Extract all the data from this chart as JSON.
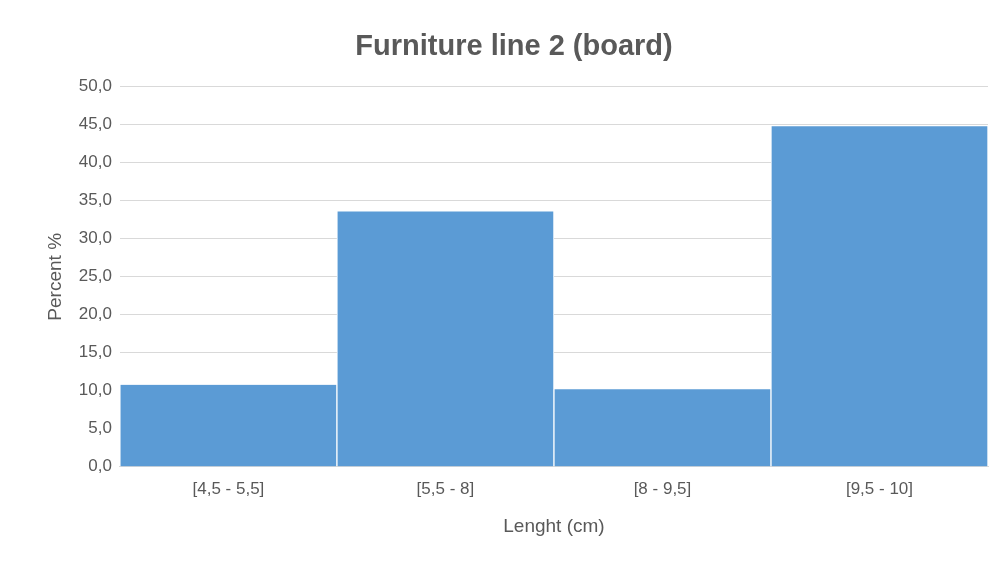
{
  "chart_data": {
    "type": "bar",
    "title": "Furniture line 2 (board)",
    "xlabel": "Lenght (cm)",
    "ylabel": "Percent %",
    "categories": [
      "[4,5 - 5,5]",
      "[5,5 - 8]",
      "[8 - 9,5]",
      "[9,5 - 10]"
    ],
    "values": [
      10.8,
      33.6,
      10.2,
      44.8
    ],
    "color": "#5b9bd5",
    "ylim": [
      0,
      50
    ],
    "yticks": [
      {
        "value": 0,
        "label": "0,0"
      },
      {
        "value": 5,
        "label": "5,0"
      },
      {
        "value": 10,
        "label": "10,0"
      },
      {
        "value": 15,
        "label": "15,0"
      },
      {
        "value": 20,
        "label": "20,0"
      },
      {
        "value": 25,
        "label": "25,0"
      },
      {
        "value": 30,
        "label": "30,0"
      },
      {
        "value": 35,
        "label": "35,0"
      },
      {
        "value": 40,
        "label": "40,0"
      },
      {
        "value": 45,
        "label": "45,0"
      },
      {
        "value": 50,
        "label": "50,0"
      }
    ],
    "grid": "y",
    "legend": false
  }
}
